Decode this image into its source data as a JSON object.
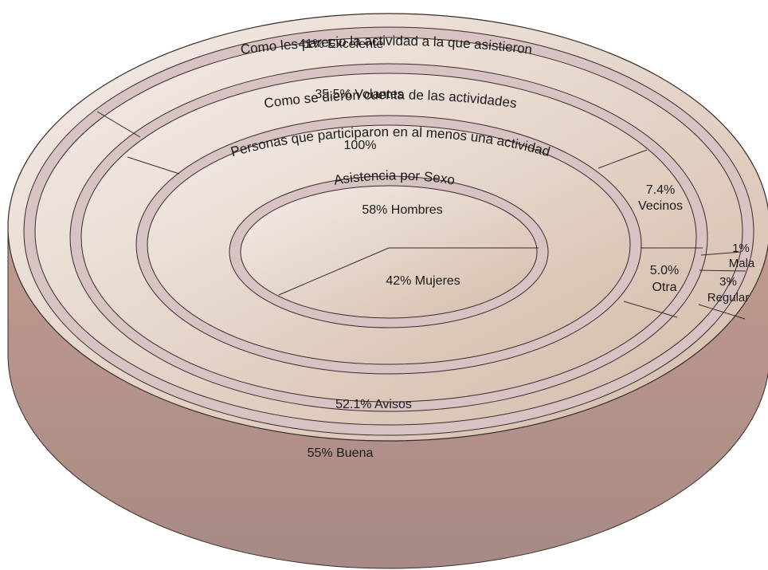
{
  "chart_data": {
    "type": "pie",
    "colors": {
      "top_fill": "#e3d2c6",
      "top_light": "#f3ebe4",
      "side_fill": "#b69188",
      "band_fill": "#d8c3c4",
      "stroke": "#3a2a2a"
    },
    "rings": [
      {
        "title": "Como les parecio la actividad a la que asistieron",
        "slices": [
          {
            "label": "Excelente",
            "value": 41,
            "display": "41% Excelente"
          },
          {
            "label": "Buena",
            "value": 55,
            "display": "55% Buena"
          },
          {
            "label": "Mala",
            "value": 1,
            "display_value": "1%",
            "display_label": "Mala"
          },
          {
            "label": "Regular",
            "value": 3,
            "display_value": "3%",
            "display_label": "Regular"
          }
        ]
      },
      {
        "title": "Como se dierón cuenta de las actividades",
        "slices": [
          {
            "label": "Volantes",
            "value": 35.5,
            "display": "35.5%  Volantes"
          },
          {
            "label": "Avisos",
            "value": 52.1,
            "display": "52.1%  Avisos"
          },
          {
            "label": "Vecinos",
            "value": 7.4,
            "display_value": "7.4%",
            "display_label": "Vecinos"
          },
          {
            "label": "Otra",
            "value": 5.0,
            "display_value": "5.0%",
            "display_label": "Otra"
          }
        ]
      },
      {
        "title": "Personas que participaron en al menos una actividad",
        "slices": [
          {
            "label": "",
            "value": 100,
            "display": "100%"
          }
        ]
      },
      {
        "title": "Asistencia por Sexo",
        "slices": [
          {
            "label": "Hombres",
            "value": 58,
            "display": "58%  Hombres"
          },
          {
            "label": "Mujeres",
            "value": 42,
            "display": "42%  Mujeres"
          }
        ]
      }
    ]
  }
}
